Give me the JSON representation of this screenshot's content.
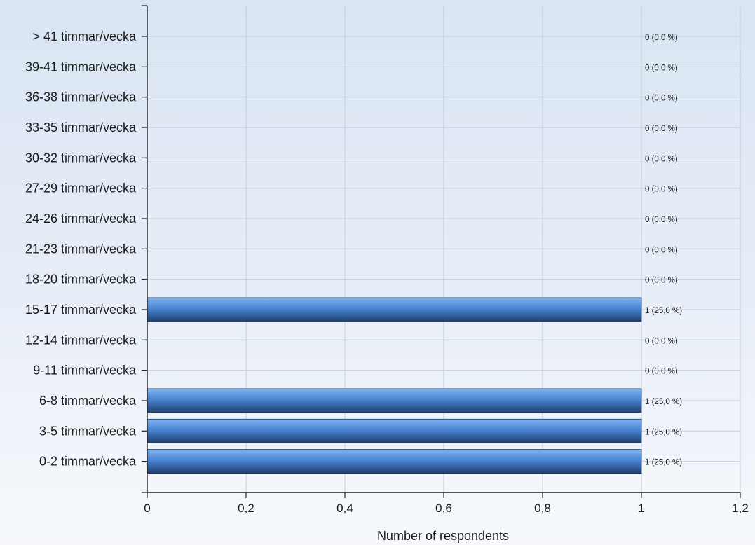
{
  "chart_data": {
    "type": "bar",
    "orientation": "horizontal",
    "categories": [
      "> 41 timmar/vecka",
      "39-41 timmar/vecka",
      "36-38 timmar/vecka",
      "33-35 timmar/vecka",
      "30-32 timmar/vecka",
      "27-29 timmar/vecka",
      "24-26 timmar/vecka",
      "21-23 timmar/vecka",
      "18-20 timmar/vecka",
      "15-17 timmar/vecka",
      "12-14 timmar/vecka",
      "9-11 timmar/vecka",
      "6-8 timmar/vecka",
      "3-5 timmar/vecka",
      "0-2 timmar/vecka"
    ],
    "values": [
      0,
      0,
      0,
      0,
      0,
      0,
      0,
      0,
      0,
      1,
      0,
      0,
      1,
      1,
      1
    ],
    "data_labels": [
      "0 (0,0 %)",
      "0 (0,0 %)",
      "0 (0,0 %)",
      "0 (0,0 %)",
      "0 (0,0 %)",
      "0 (0,0 %)",
      "0 (0,0 %)",
      "0 (0,0 %)",
      "0 (0,0 %)",
      "1 (25,0 %)",
      "0 (0,0 %)",
      "0 (0,0 %)",
      "1 (25,0 %)",
      "1 (25,0 %)",
      "1 (25,0 %)"
    ],
    "xlabel": "Number of respondents",
    "xlim": [
      0,
      1.2
    ],
    "x_ticks": [
      0,
      0.2,
      0.4,
      0.6,
      0.8,
      1,
      1.2
    ],
    "x_tick_labels": [
      "0",
      "0,2",
      "0,4",
      "0,6",
      "0,8",
      "1",
      "1,2"
    ],
    "grid": true,
    "legend": "none",
    "colors": {
      "bar_top": "#7fb2f0",
      "bar_mid": "#4a84d2",
      "bar_bottom": "#1f3f6e",
      "grid": "#c3cdd9",
      "axis": "#222222"
    }
  }
}
